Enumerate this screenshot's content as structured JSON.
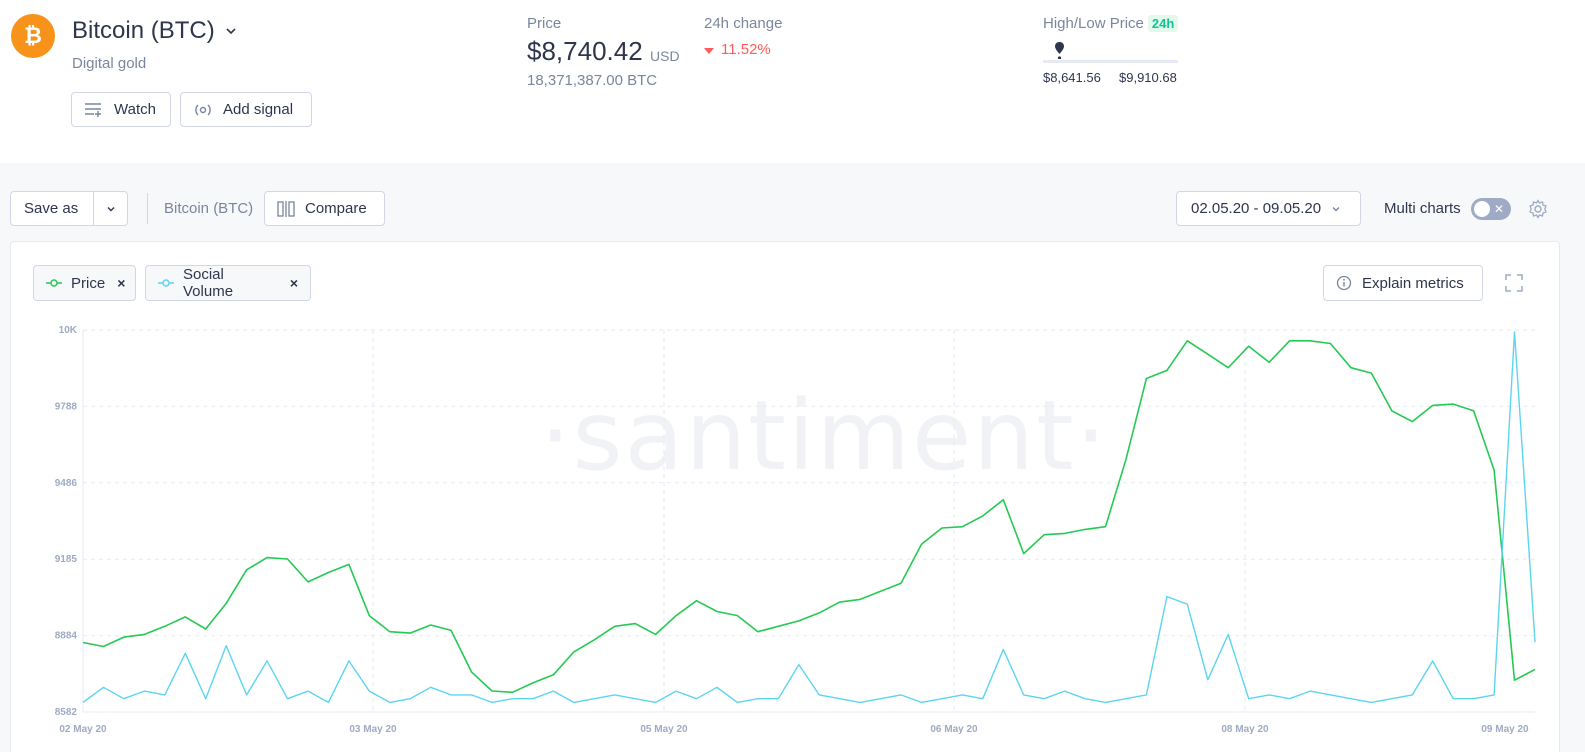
{
  "asset": {
    "name": "Bitcoin (BTC)",
    "description": "Digital gold",
    "logo_icon": "bitcoin-icon",
    "logo_color": "#f7931a"
  },
  "actions": {
    "watch_label": "Watch",
    "add_signal_label": "Add signal"
  },
  "price": {
    "label": "Price",
    "value": "$8,740.42",
    "currency": "USD",
    "supply": "18,371,387.00 BTC"
  },
  "change": {
    "label": "24h change",
    "value": "11.52%",
    "direction": "down",
    "color": "#ff5b5b"
  },
  "high_low": {
    "label": "High/Low Price",
    "period": "24h",
    "low": "$8,641.56",
    "high": "$9,910.68",
    "position": 0.08
  },
  "toolbar": {
    "save_as_label": "Save as",
    "asset_label": "Bitcoin (BTC)",
    "compare_label": "Compare",
    "date_range": "02.05.20 - 09.05.20",
    "multi_charts_label": "Multi charts",
    "multi_charts_on": false
  },
  "metrics": [
    {
      "label": "Price",
      "color": "#26c953"
    },
    {
      "label": "Social Volume",
      "color": "#5bd5f0"
    }
  ],
  "explain_label": "Explain metrics",
  "watermark": "·santiment·",
  "chart_data": {
    "type": "line",
    "y_ticks": [
      "10K",
      "9788",
      "9486",
      "9185",
      "8884",
      "8582"
    ],
    "ylim": [
      8582,
      10000
    ],
    "x_ticks": [
      "02 May 20",
      "03 May 20",
      "05 May 20",
      "06 May 20",
      "08 May 20",
      "09 May 20"
    ],
    "grid": true,
    "series": [
      {
        "name": "Price",
        "color": "#26c953",
        "values": [
          8840,
          8825,
          8860,
          8870,
          8900,
          8935,
          8890,
          8985,
          9110,
          9155,
          9150,
          9065,
          9100,
          9130,
          8940,
          8880,
          8875,
          8905,
          8885,
          8730,
          8660,
          8655,
          8690,
          8720,
          8805,
          8850,
          8900,
          8910,
          8870,
          8940,
          8995,
          8955,
          8940,
          8880,
          8900,
          8920,
          8950,
          8990,
          9000,
          9030,
          9060,
          9205,
          9265,
          9270,
          9310,
          9370,
          9170,
          9240,
          9245,
          9260,
          9270,
          9520,
          9820,
          9850,
          9960,
          9910,
          9860,
          9940,
          9880,
          9960,
          9960,
          9950,
          9860,
          9840,
          9700,
          9660,
          9720,
          9725,
          9700,
          9480,
          8700,
          8740
        ]
      },
      {
        "name": "Social Volume",
        "color": "#5bd5f0",
        "values": [
          2,
          6,
          3,
          5,
          4,
          15,
          3,
          17,
          4,
          13,
          3,
          5,
          2,
          13,
          5,
          2,
          3,
          6,
          4,
          4,
          2,
          3,
          3,
          5,
          2,
          3,
          4,
          3,
          2,
          5,
          3,
          6,
          2,
          3,
          3,
          12,
          4,
          3,
          2,
          3,
          4,
          2,
          3,
          4,
          3,
          16,
          4,
          3,
          5,
          3,
          2,
          3,
          4,
          30,
          28,
          8,
          20,
          3,
          4,
          3,
          5,
          4,
          3,
          2,
          3,
          4,
          13,
          3,
          3,
          4,
          100,
          18
        ]
      }
    ]
  }
}
